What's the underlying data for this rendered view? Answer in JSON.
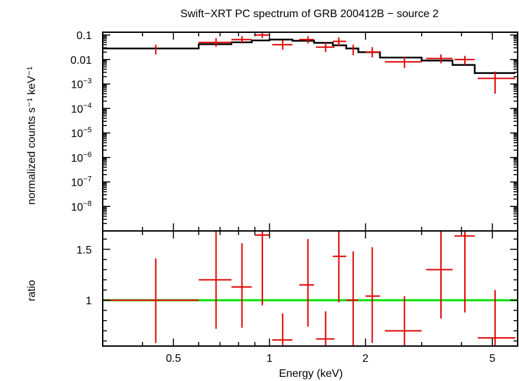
{
  "chart_data": [
    {
      "type": "line",
      "title": "Swift−XRT PC spectrum of GRB 200412B − source 2",
      "xlabel": "",
      "ylabel": "normalized counts s⁻¹ keV⁻¹",
      "xscale": "log",
      "yscale": "log",
      "xlim": [
        0.3,
        6.0
      ],
      "ylim": [
        1e-09,
        0.13
      ],
      "ytick_labels": [
        {
          "value": 0.1,
          "base": "0.1",
          "exp": ""
        },
        {
          "value": 0.01,
          "base": "0.01",
          "exp": ""
        },
        {
          "value": 0.001,
          "base": "10",
          "exp": "−3"
        },
        {
          "value": 0.0001,
          "base": "10",
          "exp": "−4"
        },
        {
          "value": 1e-05,
          "base": "10",
          "exp": "−5"
        },
        {
          "value": 1e-06,
          "base": "10",
          "exp": "−6"
        },
        {
          "value": 1e-07,
          "base": "10",
          "exp": "−7"
        },
        {
          "value": 1e-08,
          "base": "10",
          "exp": "−8"
        }
      ],
      "series": [
        {
          "name": "data",
          "color": "#e00000",
          "points": [
            {
              "x": 0.44,
              "xlo": 0.44,
              "xhi": 0.44,
              "y": 0.025,
              "ylo": 0.016,
              "yhi": 0.04
            },
            {
              "x": 0.68,
              "xlo": 0.6,
              "xhi": 0.76,
              "y": 0.05,
              "ylo": 0.033,
              "yhi": 0.075
            },
            {
              "x": 0.82,
              "xlo": 0.76,
              "xhi": 0.88,
              "y": 0.065,
              "ylo": 0.045,
              "yhi": 0.09
            },
            {
              "x": 0.95,
              "xlo": 0.9,
              "xhi": 1.0,
              "y": 0.1,
              "ylo": 0.075,
              "yhi": 0.125
            },
            {
              "x": 1.1,
              "xlo": 1.02,
              "xhi": 1.18,
              "y": 0.04,
              "ylo": 0.025,
              "yhi": 0.06
            },
            {
              "x": 1.32,
              "xlo": 1.24,
              "xhi": 1.38,
              "y": 0.065,
              "ylo": 0.045,
              "yhi": 0.09
            },
            {
              "x": 1.5,
              "xlo": 1.4,
              "xhi": 1.6,
              "y": 0.032,
              "ylo": 0.02,
              "yhi": 0.05
            },
            {
              "x": 1.65,
              "xlo": 1.58,
              "xhi": 1.74,
              "y": 0.055,
              "ylo": 0.035,
              "yhi": 0.08
            },
            {
              "x": 1.83,
              "xlo": 1.83,
              "xhi": 1.83,
              "y": 0.025,
              "ylo": 0.015,
              "yhi": 0.04
            },
            {
              "x": 2.1,
              "xlo": 2.0,
              "xhi": 2.22,
              "y": 0.02,
              "ylo": 0.012,
              "yhi": 0.032
            },
            {
              "x": 2.65,
              "xlo": 2.3,
              "xhi": 3.0,
              "y": 0.008,
              "ylo": 0.0045,
              "yhi": 0.013
            },
            {
              "x": 3.45,
              "xlo": 3.1,
              "xhi": 3.75,
              "y": 0.011,
              "ylo": 0.007,
              "yhi": 0.016
            },
            {
              "x": 4.1,
              "xlo": 3.8,
              "xhi": 4.4,
              "y": 0.01,
              "ylo": 0.006,
              "yhi": 0.014
            },
            {
              "x": 5.1,
              "xlo": 4.5,
              "xhi": 5.9,
              "y": 0.0017,
              "ylo": 0.0004,
              "yhi": 0.0032
            }
          ]
        },
        {
          "name": "model",
          "color": "#000000",
          "step": true,
          "x": [
            0.3,
            0.6,
            0.6,
            0.76,
            0.76,
            0.88,
            0.88,
            1.0,
            1.0,
            1.18,
            1.18,
            1.38,
            1.38,
            1.58,
            1.58,
            1.74,
            1.74,
            1.9,
            1.9,
            2.22,
            2.22,
            3.0,
            3.0,
            3.75,
            3.75,
            4.4,
            4.4,
            5.9
          ],
          "y": [
            0.028,
            0.028,
            0.042,
            0.042,
            0.05,
            0.05,
            0.06,
            0.06,
            0.065,
            0.065,
            0.058,
            0.058,
            0.048,
            0.048,
            0.038,
            0.038,
            0.028,
            0.028,
            0.02,
            0.02,
            0.012,
            0.012,
            0.009,
            0.009,
            0.006,
            0.006,
            0.0028,
            0.0028
          ]
        }
      ]
    },
    {
      "type": "scatter",
      "title": "",
      "xlabel": "Energy (keV)",
      "ylabel": "ratio",
      "xscale": "log",
      "yscale": "linear",
      "xlim": [
        0.3,
        6.0
      ],
      "ylim": [
        0.55,
        1.68
      ],
      "xticks": [
        0.5,
        1,
        2,
        5
      ],
      "xtick_labels": [
        "0.5",
        "1",
        "2",
        "5"
      ],
      "yticks": [
        1,
        1.5
      ],
      "ytick_labels": [
        "1",
        "1.5"
      ],
      "reference_line": {
        "y": 1,
        "color": "#00e000"
      },
      "series": [
        {
          "name": "ratio",
          "color": "#e00000",
          "points": [
            {
              "x": 0.44,
              "xlo": 0.3,
              "xhi": 0.6,
              "y": 1.0,
              "ylo": 0.58,
              "yhi": 1.41
            },
            {
              "x": 0.68,
              "xlo": 0.6,
              "xhi": 0.76,
              "y": 1.2,
              "ylo": 0.72,
              "yhi": 1.68
            },
            {
              "x": 0.82,
              "xlo": 0.76,
              "xhi": 0.88,
              "y": 1.13,
              "ylo": 0.73,
              "yhi": 1.56
            },
            {
              "x": 0.95,
              "xlo": 0.9,
              "xhi": 1.0,
              "y": 1.64,
              "ylo": 0.95,
              "yhi": 1.68
            },
            {
              "x": 1.1,
              "xlo": 1.02,
              "xhi": 1.18,
              "y": 0.61,
              "ylo": 0.55,
              "yhi": 0.87
            },
            {
              "x": 1.32,
              "xlo": 1.24,
              "xhi": 1.38,
              "y": 1.15,
              "ylo": 0.74,
              "yhi": 1.6
            },
            {
              "x": 1.5,
              "xlo": 1.4,
              "xhi": 1.6,
              "y": 0.62,
              "ylo": 0.55,
              "yhi": 0.89
            },
            {
              "x": 1.65,
              "xlo": 1.58,
              "xhi": 1.74,
              "y": 1.43,
              "ylo": 0.98,
              "yhi": 1.68
            },
            {
              "x": 1.83,
              "xlo": 1.74,
              "xhi": 1.9,
              "y": 1.0,
              "ylo": 0.55,
              "yhi": 1.48
            },
            {
              "x": 2.1,
              "xlo": 2.0,
              "xhi": 2.22,
              "y": 1.04,
              "ylo": 0.58,
              "yhi": 1.52
            },
            {
              "x": 2.65,
              "xlo": 2.3,
              "xhi": 3.0,
              "y": 0.7,
              "ylo": 0.55,
              "yhi": 1.04
            },
            {
              "x": 3.45,
              "xlo": 3.1,
              "xhi": 3.75,
              "y": 1.3,
              "ylo": 0.82,
              "yhi": 1.68
            },
            {
              "x": 4.1,
              "xlo": 3.8,
              "xhi": 4.4,
              "y": 1.63,
              "ylo": 0.88,
              "yhi": 1.68
            },
            {
              "x": 5.1,
              "xlo": 4.5,
              "xhi": 5.9,
              "y": 0.63,
              "ylo": 0.55,
              "yhi": 1.1
            }
          ]
        }
      ]
    }
  ]
}
